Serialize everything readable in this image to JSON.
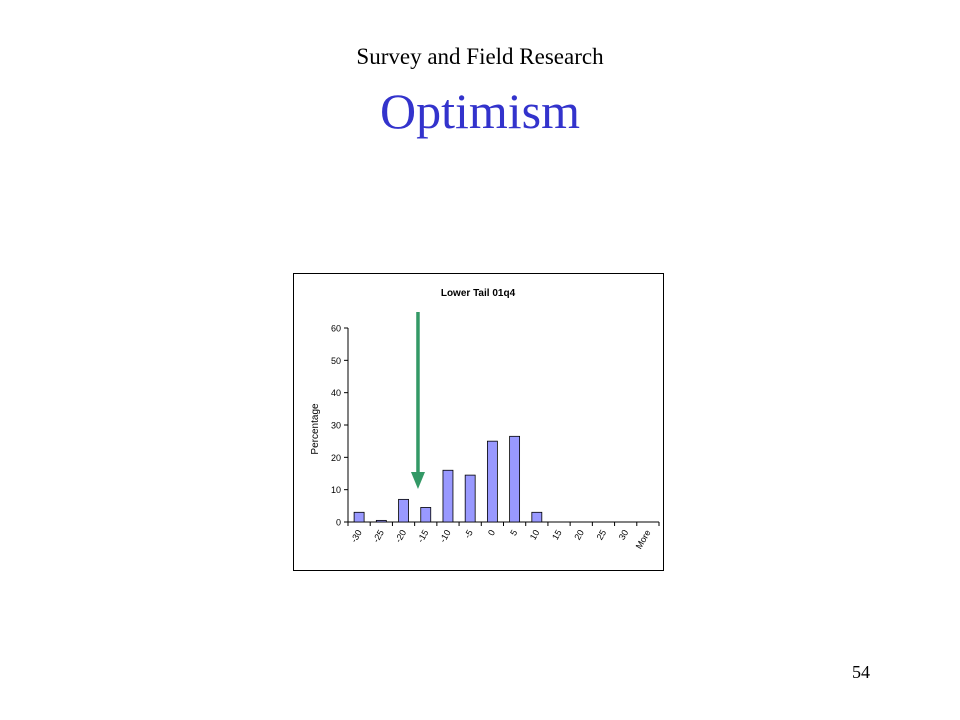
{
  "slide": {
    "subtitle": "Survey and Field Research",
    "title": "Optimism",
    "page_number": "54"
  },
  "colors": {
    "title": "#3333cc",
    "bar_fill": "#9999ff",
    "bar_stroke": "#000000",
    "arrow": "#339966"
  },
  "chart_data": {
    "type": "bar",
    "title": "Lower Tail 01q4",
    "xlabel": "",
    "ylabel": "Percentage",
    "categories": [
      "-30",
      "-25",
      "-20",
      "-15",
      "-10",
      "-5",
      "0",
      "5",
      "10",
      "15",
      "20",
      "25",
      "30",
      "More"
    ],
    "values": [
      3,
      0.5,
      7,
      4.5,
      16,
      14.5,
      25,
      26.5,
      3,
      0,
      0,
      0,
      0,
      0
    ],
    "ylim": [
      0,
      60
    ],
    "yticks": [
      0,
      10,
      20,
      30,
      40,
      50,
      60
    ],
    "grid": false,
    "legend": "none",
    "annotations": [
      {
        "type": "arrow",
        "direction": "down",
        "points_to_category": "-15",
        "color": "green"
      }
    ]
  }
}
